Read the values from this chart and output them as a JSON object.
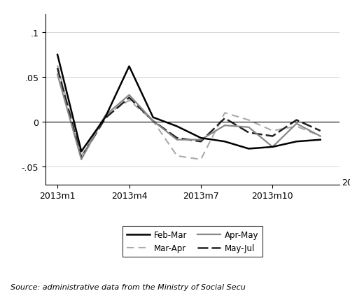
{
  "x_ticks_pos": [
    1,
    4,
    7,
    10
  ],
  "x_labels": [
    "2013m1",
    "2013m4",
    "2013m7",
    "2013m10"
  ],
  "x_months": [
    1,
    2,
    3,
    4,
    5,
    6,
    7,
    8,
    9,
    10,
    11,
    12
  ],
  "feb_mar": [
    0.075,
    -0.033,
    0.005,
    0.062,
    0.005,
    -0.005,
    -0.018,
    -0.022,
    -0.03,
    -0.028,
    -0.022,
    -0.02
  ],
  "mar_apr": [
    0.063,
    -0.038,
    0.007,
    0.024,
    0.001,
    -0.038,
    -0.042,
    0.01,
    0.002,
    -0.01,
    -0.005,
    -0.016
  ],
  "apr_may": [
    0.053,
    -0.042,
    0.007,
    0.03,
    0.001,
    -0.02,
    -0.02,
    -0.004,
    -0.006,
    -0.028,
    -0.002,
    -0.016
  ],
  "may_jul": [
    0.06,
    -0.04,
    0.004,
    0.027,
    0.001,
    -0.018,
    -0.022,
    0.004,
    -0.012,
    -0.016,
    0.002,
    -0.01
  ],
  "xlim": [
    0.5,
    12.8
  ],
  "ylim": [
    -0.07,
    0.12
  ],
  "yticks": [
    -0.05,
    0,
    0.05,
    0.1
  ],
  "ytick_labels": [
    "-.05",
    "0",
    ".05",
    ".1"
  ],
  "source_text": "Source: administrative data from the Ministry of Social Secu",
  "legend": {
    "feb_mar_label": "Feb-Mar",
    "mar_apr_label": "Mar-Apr",
    "apr_may_label": "Apr-May",
    "may_jul_label": "May-Jul"
  }
}
